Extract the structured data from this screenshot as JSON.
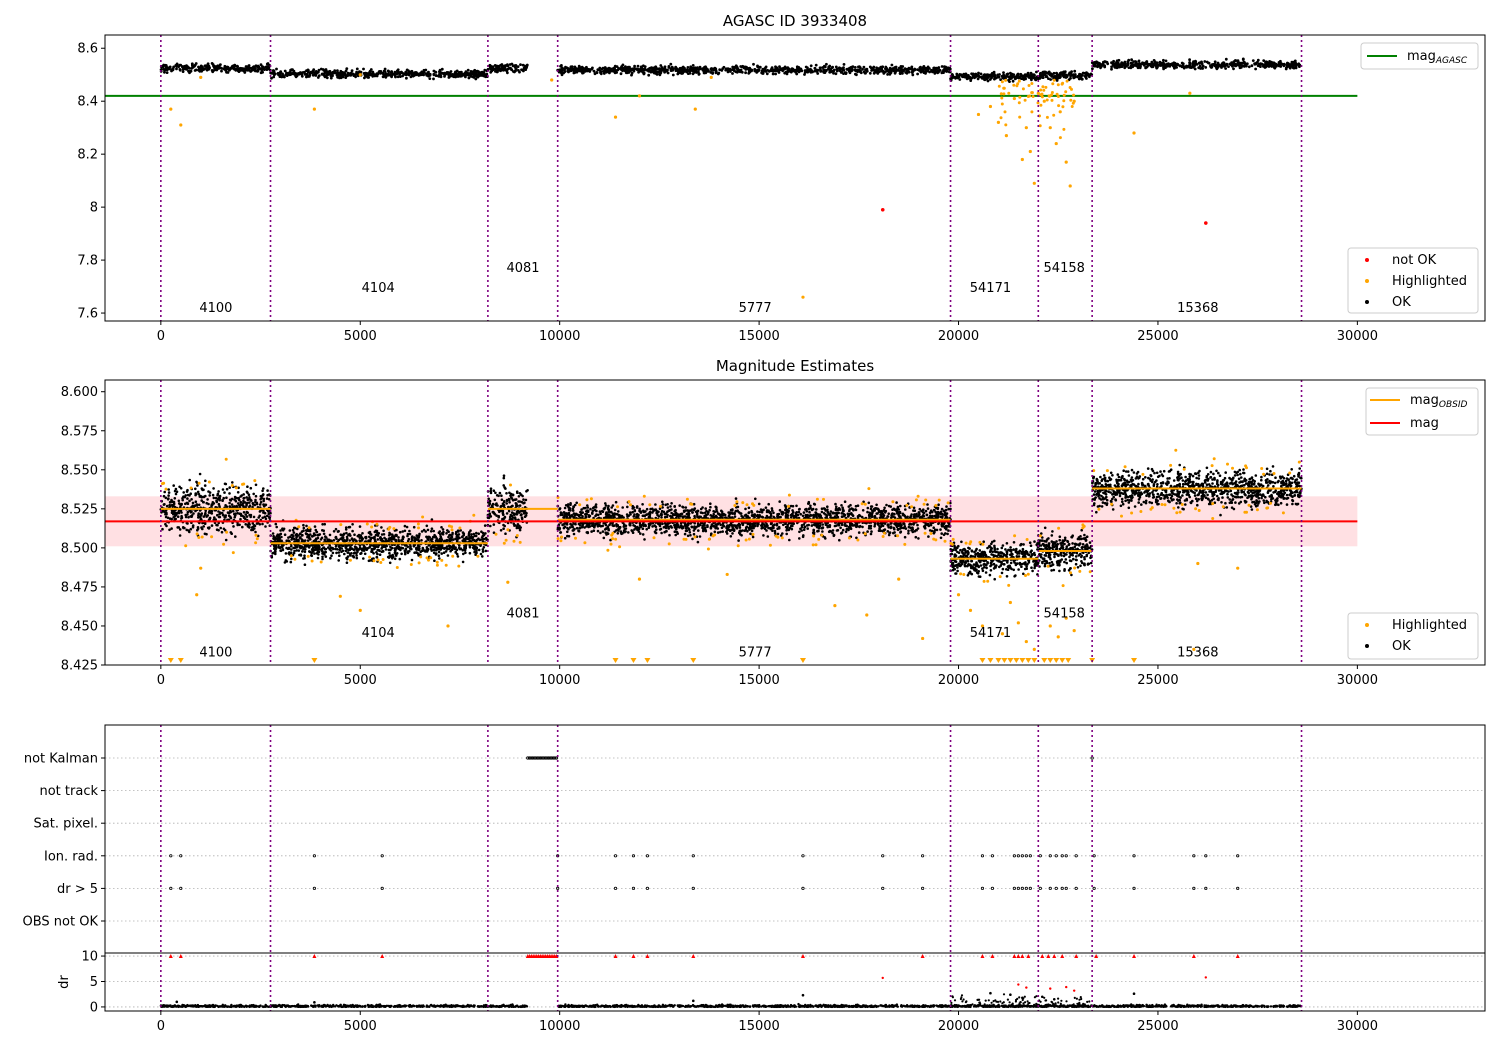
{
  "chart_data": [
    {
      "type": "scatter",
      "title": "AGASC ID 3933408",
      "xlim": [
        -1400,
        33200
      ],
      "ylim": [
        7.57,
        8.65
      ],
      "xticks": [
        0,
        5000,
        10000,
        15000,
        20000,
        25000,
        30000
      ],
      "yticks": [
        7.6,
        7.8,
        8.0,
        8.2,
        8.4,
        8.6
      ],
      "obs_boundaries": [
        0,
        2750,
        8200,
        9950,
        19800,
        22000,
        23350,
        28600
      ],
      "obs_labels": [
        {
          "text": "4100",
          "x": 1380,
          "y": 7.62
        },
        {
          "text": "4104",
          "x": 5450,
          "y": 7.695
        },
        {
          "text": "4081",
          "x": 9080,
          "y": 7.77
        },
        {
          "text": "5777",
          "x": 14900,
          "y": 7.62
        },
        {
          "text": "54171",
          "x": 20800,
          "y": 7.695
        },
        {
          "text": "54158",
          "x": 22650,
          "y": 7.77
        },
        {
          "text": "15368",
          "x": 26000,
          "y": 7.62
        }
      ],
      "mag_agasc": {
        "name": "mag_AGASC",
        "value": 8.42,
        "x_range": [
          -1400,
          30000
        ],
        "color": "#008000"
      },
      "segments": [
        {
          "x": [
            0,
            2750
          ],
          "mean": 8.525,
          "spread": 0.012
        },
        {
          "x": [
            2750,
            8200
          ],
          "mean": 8.503,
          "spread": 0.008
        },
        {
          "x": [
            8200,
            9200
          ],
          "mean": 8.525,
          "spread": 0.012
        },
        {
          "x": [
            9950,
            19800
          ],
          "mean": 8.518,
          "spread": 0.008
        },
        {
          "x": [
            19800,
            22000
          ],
          "mean": 8.493,
          "spread": 0.008
        },
        {
          "x": [
            22000,
            23350
          ],
          "mean": 8.498,
          "spread": 0.009
        },
        {
          "x": [
            23350,
            28600
          ],
          "mean": 8.538,
          "spread": 0.009
        }
      ],
      "highlighted": [
        [
          250,
          8.37
        ],
        [
          500,
          8.31
        ],
        [
          3850,
          8.37
        ],
        [
          11400,
          8.34
        ],
        [
          13400,
          8.37
        ],
        [
          16100,
          7.66
        ],
        [
          20500,
          8.35
        ],
        [
          20800,
          8.38
        ],
        [
          21000,
          8.32
        ],
        [
          21200,
          8.27
        ],
        [
          21400,
          8.41
        ],
        [
          21600,
          8.18
        ],
        [
          21700,
          8.3
        ],
        [
          21800,
          8.21
        ],
        [
          21900,
          8.09
        ],
        [
          22000,
          8.43
        ],
        [
          22150,
          8.4
        ],
        [
          22300,
          8.3
        ],
        [
          22450,
          8.24
        ],
        [
          22550,
          8.36
        ],
        [
          22700,
          8.17
        ],
        [
          22800,
          8.08
        ],
        [
          22900,
          8.4
        ],
        [
          24400,
          8.28
        ],
        [
          25800,
          8.43
        ],
        [
          1000,
          8.49
        ],
        [
          5000,
          8.5
        ],
        [
          12000,
          8.42
        ],
        [
          9800,
          8.48
        ],
        [
          13800,
          8.49
        ]
      ],
      "not_ok": [
        [
          18100,
          7.99
        ],
        [
          26200,
          7.94
        ]
      ],
      "legends": [
        {
          "entries": [
            "mag_AGASC"
          ]
        },
        {
          "entries": [
            "not OK",
            "Highlighted",
            "OK"
          ]
        }
      ],
      "colors": {
        "ok": "#000000",
        "highlighted": "#ffa500",
        "not_ok": "#ff0000",
        "agasc": "#008000",
        "boundary": "#800080"
      }
    },
    {
      "type": "scatter",
      "title": "Magnitude Estimates",
      "xlim": [
        -1400,
        33200
      ],
      "ylim": [
        8.425,
        8.6075
      ],
      "xticks": [
        0,
        5000,
        10000,
        15000,
        20000,
        25000,
        30000
      ],
      "yticks": [
        8.425,
        8.45,
        8.475,
        8.5,
        8.525,
        8.55,
        8.575,
        8.6
      ],
      "ytick_labels": [
        "8.425",
        "8.450",
        "8.475",
        "8.500",
        "8.525",
        "8.550",
        "8.575",
        "8.600"
      ],
      "obs_boundaries": [
        0,
        2750,
        8200,
        9950,
        19800,
        22000,
        23350,
        28600
      ],
      "obs_labels": [
        {
          "text": "4100",
          "x": 1380,
          "y": 8.433
        },
        {
          "text": "4104",
          "x": 5450,
          "y": 8.4455
        },
        {
          "text": "4081",
          "x": 9080,
          "y": 8.458
        },
        {
          "text": "5777",
          "x": 14900,
          "y": 8.433
        },
        {
          "text": "54171",
          "x": 20800,
          "y": 8.4455
        },
        {
          "text": "54158",
          "x": 22650,
          "y": 8.458
        },
        {
          "text": "15368",
          "x": 26000,
          "y": 8.433
        }
      ],
      "mag": {
        "name": "mag",
        "value": 8.517,
        "band": [
          8.501,
          8.533
        ],
        "x_range": [
          -1400,
          30000
        ],
        "color": "#ff0000"
      },
      "mag_obsid": [
        {
          "x": [
            0,
            2750
          ],
          "value": 8.525
        },
        {
          "x": [
            2750,
            8200
          ],
          "value": 8.503
        },
        {
          "x": [
            8200,
            9950
          ],
          "value": 8.525
        },
        {
          "x": [
            9950,
            19800
          ],
          "value": 8.518
        },
        {
          "x": [
            19800,
            22000
          ],
          "value": 8.493
        },
        {
          "x": [
            22000,
            23350
          ],
          "value": 8.498
        },
        {
          "x": [
            23350,
            28600
          ],
          "value": 8.538
        }
      ],
      "segments": [
        {
          "x": [
            0,
            2750
          ],
          "mean": 8.525,
          "spread": 0.012
        },
        {
          "x": [
            2750,
            8200
          ],
          "mean": 8.503,
          "spread": 0.008
        },
        {
          "x": [
            8200,
            9200
          ],
          "mean": 8.525,
          "spread": 0.012
        },
        {
          "x": [
            9950,
            19800
          ],
          "mean": 8.518,
          "spread": 0.008
        },
        {
          "x": [
            19800,
            22000
          ],
          "mean": 8.493,
          "spread": 0.008
        },
        {
          "x": [
            22000,
            23350
          ],
          "mean": 8.498,
          "spread": 0.009
        },
        {
          "x": [
            23350,
            28600
          ],
          "mean": 8.538,
          "spread": 0.009
        }
      ],
      "highlighted": [
        [
          900,
          8.47
        ],
        [
          1000,
          8.487
        ],
        [
          4500,
          8.469
        ],
        [
          5000,
          8.46
        ],
        [
          7200,
          8.45
        ],
        [
          8700,
          8.478
        ],
        [
          12000,
          8.48
        ],
        [
          14200,
          8.483
        ],
        [
          16900,
          8.463
        ],
        [
          17700,
          8.457
        ],
        [
          18500,
          8.48
        ],
        [
          19100,
          8.442
        ],
        [
          20000,
          8.47
        ],
        [
          20300,
          8.46
        ],
        [
          20600,
          8.45
        ],
        [
          21100,
          8.445
        ],
        [
          21300,
          8.465
        ],
        [
          21500,
          8.452
        ],
        [
          21700,
          8.44
        ],
        [
          21900,
          8.435
        ],
        [
          22300,
          8.45
        ],
        [
          22500,
          8.443
        ],
        [
          22700,
          8.455
        ],
        [
          22900,
          8.447
        ],
        [
          26000,
          8.49
        ],
        [
          27000,
          8.487
        ],
        [
          25900,
          8.435
        ]
      ],
      "out_of_range_low": [
        250,
        500,
        3850,
        11400,
        11850,
        12200,
        13350,
        16100,
        20600,
        20800,
        21000,
        21150,
        21300,
        21450,
        21600,
        21750,
        21900,
        22150,
        22300,
        22450,
        22600,
        22750,
        23350,
        24400
      ],
      "legends": [
        {
          "entries": [
            "mag_OBSID",
            "mag"
          ]
        },
        {
          "entries": [
            "Highlighted",
            "OK"
          ]
        }
      ],
      "colors": {
        "ok": "#000000",
        "highlighted": "#ffa500",
        "band": "#ffd6d9",
        "boundary": "#800080"
      }
    },
    {
      "type": "scatter",
      "title": "",
      "xlim": [
        -1400,
        33200
      ],
      "xticks": [
        0,
        5000,
        10000,
        15000,
        20000,
        25000,
        30000
      ],
      "flag_rows": [
        "not Kalman",
        "not track",
        "Sat. pixel.",
        "Ion. rad.",
        "dr > 5",
        "OBS not OK"
      ],
      "flags": {
        "not Kalman": {
          "ranges": [
            [
              9200,
              9950
            ]
          ],
          "points": [
            23350
          ]
        },
        "Ion. rad.": {
          "points": [
            250,
            500,
            3850,
            5550,
            9950,
            11400,
            11850,
            12200,
            13350,
            16100,
            18100,
            19100,
            20600,
            20850,
            21400,
            21500,
            21600,
            21700,
            21800,
            22050,
            22300,
            22450,
            22600,
            22700,
            22950,
            23400,
            24400,
            25900,
            26200,
            27000
          ]
        },
        "dr > 5": {
          "points": [
            250,
            500,
            3850,
            5550,
            9950,
            11400,
            11850,
            12200,
            13350,
            16100,
            18100,
            19100,
            20600,
            20850,
            21400,
            21500,
            21600,
            21700,
            21800,
            22050,
            22300,
            22450,
            22600,
            22700,
            22950,
            23400,
            24400,
            25900,
            26200,
            27000
          ]
        }
      },
      "dr_panel": {
        "ylabel": "dr",
        "yticks": [
          0,
          5,
          10
        ],
        "ylim": [
          -0.8,
          10.6
        ],
        "clip": 10,
        "red_clipped": [
          250,
          500,
          3850,
          5550,
          11400,
          11850,
          12200,
          13350,
          16100,
          19100,
          20600,
          20850,
          21400,
          21500,
          21600,
          21750,
          22100,
          22250,
          22400,
          22600,
          22950,
          23450,
          24400,
          25900,
          27000
        ],
        "red_dense_range": [
          9200,
          9950
        ],
        "red_low": [
          [
            18100,
            5.7
          ],
          [
            26200,
            5.8
          ],
          [
            21500,
            4.4
          ],
          [
            21700,
            3.8
          ],
          [
            22300,
            3.6
          ],
          [
            22700,
            3.9
          ],
          [
            22900,
            3.2
          ]
        ],
        "black_spikes": [
          [
            16100,
            2.3
          ],
          [
            24400,
            2.6
          ],
          [
            20800,
            2.7
          ],
          [
            21300,
            2.4
          ],
          [
            21600,
            1.8
          ],
          [
            22100,
            2.0
          ],
          [
            22400,
            1.5
          ],
          [
            13350,
            1.2
          ],
          [
            400,
            1.0
          ],
          [
            3850,
            0.9
          ]
        ],
        "segments": [
          [
            0,
            2750
          ],
          [
            2750,
            8200
          ],
          [
            8200,
            9200
          ],
          [
            9950,
            19800
          ],
          [
            19800,
            22000
          ],
          [
            22000,
            23350
          ],
          [
            23350,
            28600
          ]
        ]
      },
      "colors": {
        "ok": "#000000",
        "not_ok": "#ff0000",
        "boundary": "#800080",
        "grid": "#b0b0b0"
      }
    }
  ]
}
